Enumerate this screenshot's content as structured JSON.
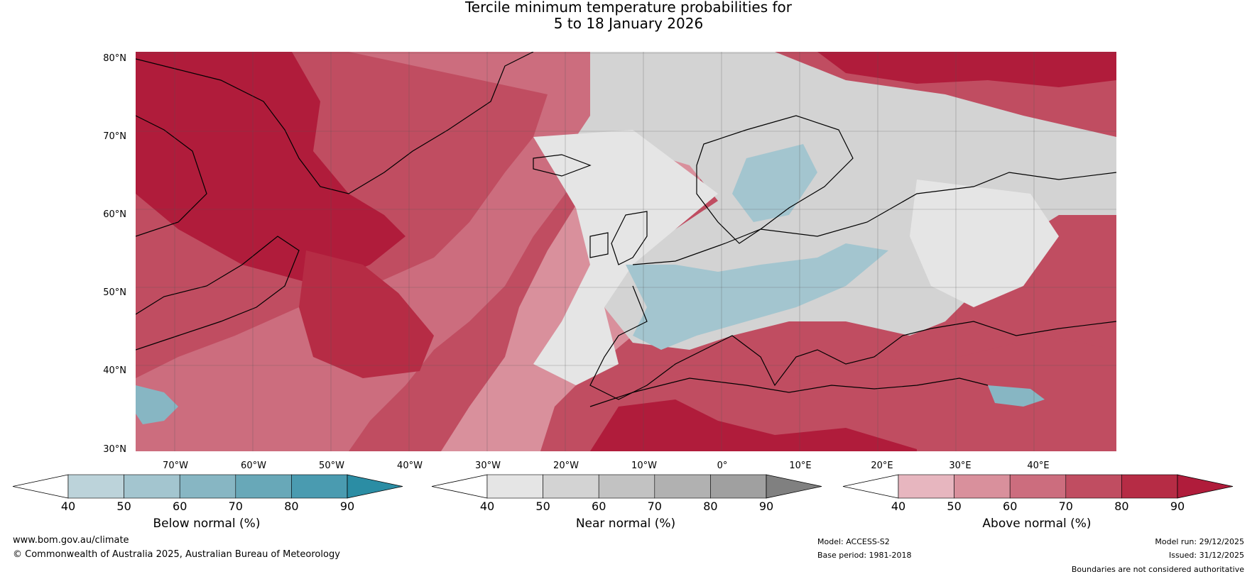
{
  "title": {
    "line1": "Tercile minimum temperature probabilities for",
    "line2": "5 to 18 January 2026"
  },
  "axes": {
    "latitudes": [
      "80°N",
      "70°N",
      "60°N",
      "50°N",
      "40°N",
      "30°N"
    ],
    "longitudes": [
      "70°W",
      "60°W",
      "50°W",
      "40°W",
      "30°W",
      "20°W",
      "10°W",
      "0°",
      "10°E",
      "20°E",
      "30°E",
      "40°E"
    ]
  },
  "colorbars": {
    "below": {
      "label": "Below normal (%)",
      "ticks": [
        "40",
        "50",
        "60",
        "70",
        "80",
        "90"
      ],
      "colors": [
        "#ffffff",
        "#bcd3da",
        "#a3c5cf",
        "#87b6c3",
        "#68a8b8",
        "#4a9bb0",
        "#2b8da4"
      ]
    },
    "near": {
      "label": "Near normal (%)",
      "ticks": [
        "40",
        "50",
        "60",
        "70",
        "80",
        "90"
      ],
      "colors": [
        "#ffffff",
        "#e5e5e5",
        "#d3d3d3",
        "#c2c2c2",
        "#b1b1b1",
        "#a0a0a0",
        "#808080"
      ]
    },
    "above": {
      "label": "Above normal (%)",
      "ticks": [
        "40",
        "50",
        "60",
        "70",
        "80",
        "90"
      ],
      "colors": [
        "#ffffff",
        "#e7b6bf",
        "#d9909c",
        "#cc6d7e",
        "#c04d61",
        "#b62c45",
        "#b01c3b"
      ]
    }
  },
  "footer": {
    "website": "www.bom.gov.au/climate",
    "copyright": "© Commonwealth of Australia 2025, Australian Bureau of Meteorology",
    "model": "Model: ACCESS-S2",
    "base_period": "Base period: 1981-2018",
    "model_run": "Model run: 29/12/2025",
    "issued": "Issued: 31/12/2025",
    "disclaimer": "Boundaries are not considered authoritative"
  }
}
